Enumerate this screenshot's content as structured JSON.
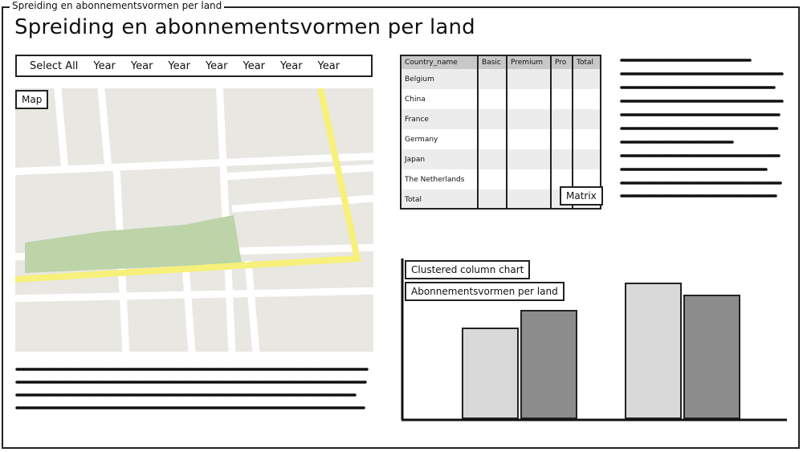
{
  "window": {
    "title": "Spreiding en abonnementsvormen per land"
  },
  "page": {
    "title": "Spreiding en abonnementsvormen per land"
  },
  "filter_bar": {
    "items": [
      "Select All",
      "Year",
      "Year",
      "Year",
      "Year",
      "Year",
      "Year",
      "Year"
    ]
  },
  "map": {
    "label": "Map"
  },
  "matrix": {
    "label": "Matrix",
    "columns": [
      "Country_name",
      "Basic",
      "Premium",
      "Pro",
      "Total"
    ],
    "rows": [
      "Belgium",
      "China",
      "France",
      "Germany",
      "Japan",
      "The Netherlands",
      "Total"
    ]
  },
  "chart": {
    "type_label": "Clustered column chart",
    "title_label": "Abonnementsvormen per land"
  },
  "chart_data": {
    "type": "bar",
    "title": "Abonnementsvormen per land",
    "categories": [
      "",
      ""
    ],
    "series": [
      {
        "values": [
          112,
          168
        ],
        "color": "#d9d9d9"
      },
      {
        "values": [
          134,
          153
        ],
        "color": "#8c8c8c"
      }
    ],
    "ylim": [
      0,
      180
    ]
  },
  "colors": {
    "map_background": "#e9e7e2",
    "road_major": "#f7f07a",
    "road_minor": "#ffffff",
    "park": "#bcd4a8",
    "table_header": "#c8c8c8",
    "table_alt_row": "#ececec"
  }
}
